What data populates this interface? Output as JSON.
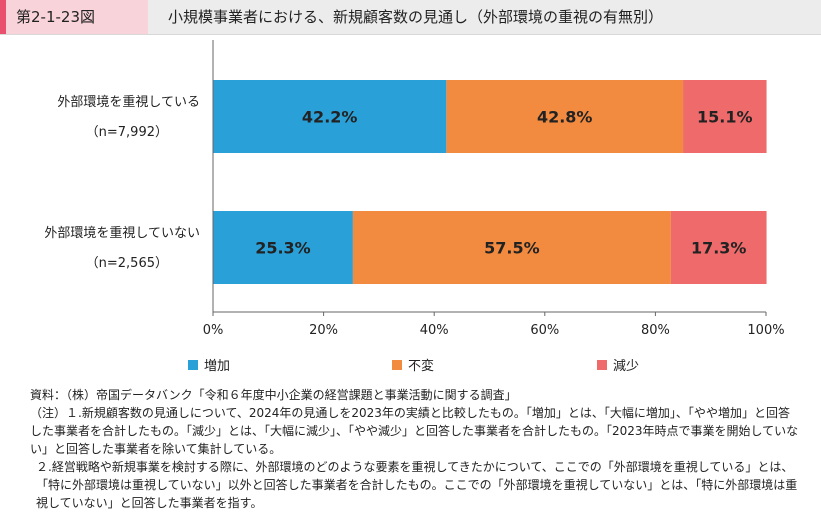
{
  "header": {
    "figure_no": "第2-1-23図",
    "title": "小規模事業者における、新規顧客数の見通し（外部環境の重視の有無別）"
  },
  "chart_data": {
    "type": "bar",
    "orientation": "horizontal",
    "stacked": true,
    "categories": [
      {
        "label": "外部環境を重視している",
        "n": "（n=7,992）"
      },
      {
        "label": "外部環境を重視していない",
        "n": "（n=2,565）"
      }
    ],
    "series": [
      {
        "name": "増加",
        "color": "#2aa0d8",
        "values": [
          42.2,
          25.3
        ]
      },
      {
        "name": "不変",
        "color": "#f28a3f",
        "values": [
          42.8,
          57.5
        ]
      },
      {
        "name": "減少",
        "color": "#ef6a6a",
        "values": [
          15.1,
          17.3
        ]
      }
    ],
    "xlim": [
      0,
      100
    ],
    "ticks": [
      "0%",
      "20%",
      "40%",
      "60%",
      "80%",
      "100%"
    ],
    "value_suffix": "%",
    "legend_position": "bottom",
    "grid": false
  },
  "notes": [
    "資料：（株）帝国データバンク「令和６年度中小企業の経営課題と事業活動に関する調査」",
    "（注）１.新規顧客数の見通しについて、2024年の見通しを2023年の実績と比較したもの。「増加」とは、「大幅に増加」、「やや増加」と回答した事業者を合計したもの。「減少」とは、「大幅に減少」、「やや減少」と回答した事業者を合計したもの。「2023年時点で事業を開始していない」と回答した事業者を除いて集計している。",
    "２.経営戦略や新規事業を検討する際に、外部環境のどのような要素を重視してきたかについて、ここでの「外部環境を重視している」とは、「特に外部環境は重視していない」以外と回答した事業者を合計したもの。ここでの「外部環境を重視していない」とは、「特に外部環境は重視していない」と回答した事業者を指す。"
  ]
}
